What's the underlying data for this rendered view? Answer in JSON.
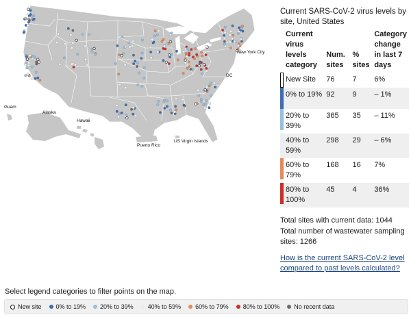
{
  "map": {
    "labels": {
      "new_york": "New York City",
      "dc": "DC",
      "guam": "Guam",
      "alaska": "Alaska",
      "hawaii": "Hawaii",
      "puerto_rico": "Puerto Rico",
      "usvi": "US Virgin Islands"
    }
  },
  "panel": {
    "title": "Current SARS-CoV-2 virus levels by site, United States",
    "headers": {
      "category": "Current virus levels category",
      "sites": "Num. sites",
      "pct": "% sites",
      "change": "Category change in last 7 days"
    },
    "rows": [
      {
        "label": "New Site",
        "sites": "76",
        "pct": "7",
        "change": "6%",
        "color": "#ffffff"
      },
      {
        "label": "0% to 19%",
        "sites": "92",
        "pct": "9",
        "change": "– 1%",
        "color": "#3d6fb1"
      },
      {
        "label": "20% to 39%",
        "sites": "365",
        "pct": "35",
        "change": "– 11%",
        "color": "#98bfdc"
      },
      {
        "label": "40% to 59%",
        "sites": "298",
        "pct": "29",
        "change": "– 6%",
        "color": "#e7eff5"
      },
      {
        "label": "60% to 79%",
        "sites": "168",
        "pct": "16",
        "change": "7%",
        "color": "#e8895a"
      },
      {
        "label": "80% to 100%",
        "sites": "45",
        "pct": "4",
        "change": "36%",
        "color": "#cd2f27"
      }
    ],
    "total_current": "Total sites with current data: 1044",
    "total_sampling": "Total number of wastewater sampling sites: 1266",
    "link": "How is the current SARS-CoV-2 level compared to past levels calculated?"
  },
  "filter_instruction": "Select legend categories to filter points on the map.",
  "legend": [
    {
      "label": "New site",
      "color": "#ffffff",
      "icon": "ring"
    },
    {
      "label": "0% to 19%",
      "color": "#3d6fb1",
      "icon": "dot"
    },
    {
      "label": "20% to 39%",
      "color": "#98bfdc",
      "icon": "dot"
    },
    {
      "label": "40% to 59%",
      "color": "#e7eff5",
      "icon": "dot"
    },
    {
      "label": "60% to 79%",
      "color": "#e8895a",
      "icon": "dot"
    },
    {
      "label": "80% to 100%",
      "color": "#cd2f27",
      "icon": "dot"
    },
    {
      "label": "No recent data",
      "color": "#6b6b6b",
      "icon": "dot"
    }
  ]
}
